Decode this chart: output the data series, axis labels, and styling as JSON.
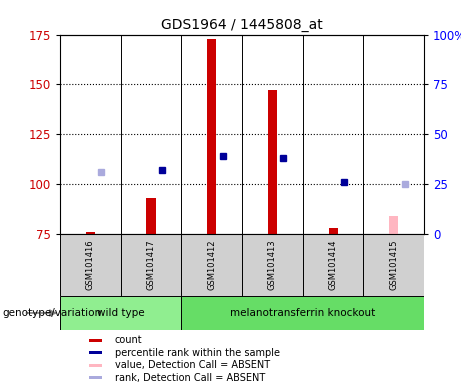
{
  "title": "GDS1964 / 1445808_at",
  "samples": [
    "GSM101416",
    "GSM101417",
    "GSM101412",
    "GSM101413",
    "GSM101414",
    "GSM101415"
  ],
  "genotype_groups": [
    {
      "label": "wild type",
      "color": "#90EE90",
      "span": [
        0,
        2
      ]
    },
    {
      "label": "melanotransferrin knockout",
      "color": "#66DD66",
      "span": [
        2,
        6
      ]
    }
  ],
  "genotype_label": "genotype/variation",
  "ylim_left": [
    75,
    175
  ],
  "ylim_right": [
    0,
    100
  ],
  "yticks_left": [
    75,
    100,
    125,
    150,
    175
  ],
  "yticks_right": [
    0,
    25,
    50,
    75,
    100
  ],
  "yticklabels_right": [
    "0",
    "25",
    "50",
    "75",
    "100%"
  ],
  "count_values": [
    76,
    93,
    173,
    147,
    78,
    null
  ],
  "count_absent": [
    null,
    null,
    null,
    null,
    null,
    84
  ],
  "percentile_values": [
    null,
    107,
    114,
    113,
    101,
    null
  ],
  "percentile_absent": [
    106,
    null,
    null,
    null,
    null,
    100
  ],
  "count_color": "#CC0000",
  "count_absent_color": "#FFB6C1",
  "percentile_color": "#000099",
  "percentile_absent_color": "#AAAADD",
  "legend_entries": [
    {
      "color": "#CC0000",
      "label": "count"
    },
    {
      "color": "#000099",
      "label": "percentile rank within the sample"
    },
    {
      "color": "#FFB6C1",
      "label": "value, Detection Call = ABSENT"
    },
    {
      "color": "#AAAADD",
      "label": "rank, Detection Call = ABSENT"
    }
  ]
}
